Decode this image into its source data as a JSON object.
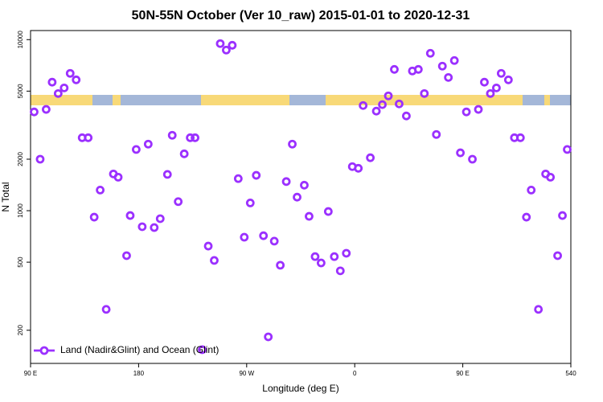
{
  "chart_data": {
    "type": "scatter",
    "title": "50N-55N October (Ver 10_raw)   2015-01-01 to 2020-12-31",
    "xlabel": "Longitude (deg E)",
    "ylabel": "N Total",
    "xlim": [
      90,
      540
    ],
    "ylim": [
      128,
      11300
    ],
    "yscale": "log",
    "xticks": [
      {
        "value": 90,
        "label": "90 E"
      },
      180,
      {
        "value": 270,
        "label": "90 W"
      },
      {
        "value": 360,
        "label": "0"
      },
      {
        "value": 450,
        "label": "90 E"
      },
      540
    ],
    "yticks": [
      200,
      500,
      1000,
      2000,
      5000,
      10000
    ],
    "legend": "bottom left",
    "series": [
      {
        "name": "Land (Nadir&Glint) and Ocean (Glint)",
        "color": "#9b30ff",
        "x": [
          93,
          98,
          103,
          108,
          113,
          118,
          123,
          128,
          133,
          138,
          143,
          148,
          153,
          159,
          163,
          170,
          173,
          178,
          183,
          188,
          193,
          198,
          204,
          208,
          213,
          218,
          223,
          227,
          233,
          238,
          243,
          248,
          253,
          258,
          263,
          268,
          273,
          278,
          284,
          288,
          293,
          298,
          303,
          308,
          312,
          318,
          322,
          327,
          332,
          338,
          343,
          348,
          353,
          358,
          363,
          367,
          373,
          378,
          383,
          388,
          393,
          397,
          403,
          408,
          413,
          418,
          423,
          428,
          433,
          438,
          443,
          448,
          453,
          458,
          463,
          468,
          473,
          478,
          482,
          488,
          493,
          498,
          503,
          507,
          513,
          519,
          523,
          529,
          533,
          537
        ],
        "values": [
          3780,
          2000,
          3910,
          5640,
          4840,
          5220,
          6350,
          5820,
          2670,
          2670,
          917,
          1320,
          265,
          1640,
          1570,
          546,
          937,
          2280,
          806,
          2450,
          797,
          898,
          1630,
          2760,
          1130,
          2150,
          2670,
          2670,
          154,
          621,
          512,
          9480,
          8690,
          9270,
          1540,
          700,
          1110,
          1610,
          714,
          183,
          664,
          480,
          1480,
          2450,
          1200,
          1410,
          927,
          539,
          495,
          989,
          539,
          445,
          564,
          1810,
          1770,
          4120,
          2040,
          3820,
          4170,
          4690,
          6700,
          4210,
          3580,
          6560,
          6700,
          4840,
          8320,
          2790,
          7000,
          6010,
          7550,
          2180,
          3780,
          2000,
          3910,
          5640,
          4840,
          5220,
          6350,
          5820,
          2670,
          2670,
          917,
          1320,
          265,
          1640,
          1570,
          546,
          937,
          2280
        ]
      }
    ]
  }
}
